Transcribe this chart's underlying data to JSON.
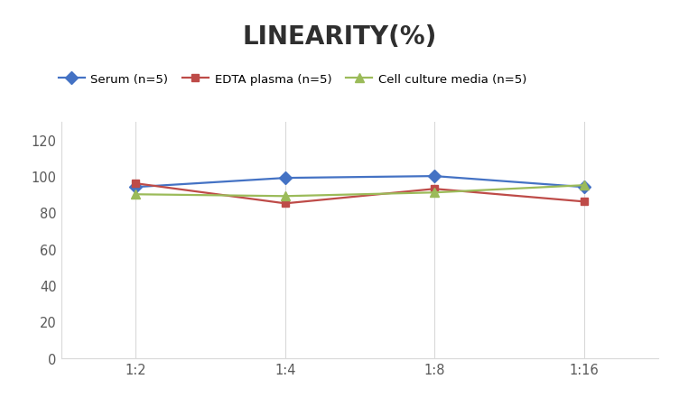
{
  "title": "LINEARITY(%)",
  "title_fontsize": 20,
  "title_fontweight": "bold",
  "x_labels": [
    "1:2",
    "1:4",
    "1:8",
    "1:16"
  ],
  "x_positions": [
    0,
    1,
    2,
    3
  ],
  "series": [
    {
      "label": "Serum (n=5)",
      "values": [
        94,
        99,
        100,
        94
      ],
      "color": "#4472C4",
      "marker": "D",
      "markersize": 7,
      "linewidth": 1.6
    },
    {
      "label": "EDTA plasma (n=5)",
      "values": [
        96,
        85,
        93,
        86
      ],
      "color": "#BE4B48",
      "marker": "s",
      "markersize": 6,
      "linewidth": 1.6
    },
    {
      "label": "Cell culture media (n=5)",
      "values": [
        90,
        89,
        91,
        95
      ],
      "color": "#9BBB59",
      "marker": "^",
      "markersize": 7,
      "linewidth": 1.6
    }
  ],
  "ylim": [
    0,
    130
  ],
  "yticks": [
    0,
    20,
    40,
    60,
    80,
    100,
    120
  ],
  "grid_color": "#D9D9D9",
  "background_color": "#FFFFFF",
  "legend_fontsize": 9.5,
  "tick_fontsize": 10.5,
  "axis_label_color": "#595959"
}
